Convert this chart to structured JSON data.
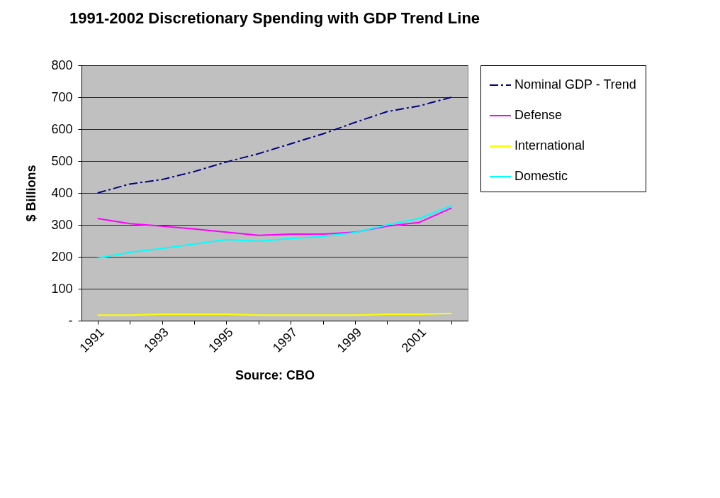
{
  "chart_data": {
    "type": "line",
    "title": "1991-2002 Discretionary Spending with GDP Trend Line",
    "xlabel": "Source:  CBO",
    "ylabel": "$ Billions",
    "categories": [
      "1991",
      null,
      "1993",
      null,
      "1995",
      null,
      "1997",
      null,
      "1999",
      null,
      "2001",
      null
    ],
    "series": [
      {
        "name": "Nominal GDP - Trend",
        "color": "#000080",
        "line_style": "dashed",
        "values": [
          400,
          428,
          442,
          467,
          497,
          523,
          554,
          585,
          621,
          655,
          673,
          700
        ]
      },
      {
        "name": "Defense",
        "color": "#ff00ff",
        "values": [
          320,
          304,
          296,
          287,
          277,
          267,
          271,
          271,
          277,
          296,
          308,
          353
        ]
      },
      {
        "name": "International",
        "color": "#ffff00",
        "values": [
          17,
          17,
          20,
          20,
          20,
          17,
          17,
          17,
          17,
          20,
          20,
          23
        ]
      },
      {
        "name": "Domestic",
        "color": "#00ffff",
        "values": [
          196,
          214,
          226,
          240,
          254,
          249,
          257,
          264,
          276,
          300,
          320,
          360
        ]
      }
    ],
    "ylim": [
      0,
      800
    ],
    "yticks": [
      {
        "value": 0,
        "label": "-"
      },
      100,
      200,
      300,
      400,
      500,
      600,
      700,
      800
    ],
    "grid": "y",
    "legend": "right",
    "line_style": "solid"
  }
}
